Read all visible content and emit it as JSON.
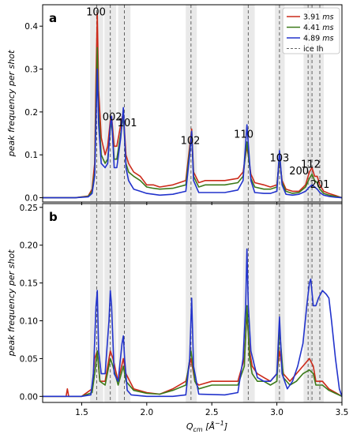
{
  "chart_data": [
    {
      "type": "line",
      "panel_label": "a",
      "ylabel": "peak frequency per shot",
      "ylim": [
        -0.01,
        0.45
      ],
      "yticks": [
        "0.0",
        "0.1",
        "0.2",
        "0.3",
        "0.4"
      ],
      "legend": {
        "placement": "top-right",
        "entries": [
          "3.91 ms",
          "4.41 ms",
          "4.89 ms",
          "ice Ih"
        ]
      },
      "peak_labels": [
        "100",
        "002",
        "101",
        "102",
        "110",
        "103",
        "200",
        "112",
        "201"
      ],
      "series": [
        {
          "name": "3.91 ms",
          "color": "#cc2a1a",
          "x": [
            1.2,
            1.45,
            1.55,
            1.58,
            1.6,
            1.61,
            1.62,
            1.63,
            1.65,
            1.68,
            1.7,
            1.72,
            1.73,
            1.75,
            1.77,
            1.8,
            1.82,
            1.84,
            1.86,
            1.9,
            1.95,
            2.0,
            2.05,
            2.1,
            2.2,
            2.3,
            2.33,
            2.345,
            2.36,
            2.4,
            2.45,
            2.5,
            2.6,
            2.7,
            2.74,
            2.77,
            2.8,
            2.83,
            2.9,
            2.95,
            3.0,
            3.02,
            3.04,
            3.07,
            3.12,
            3.17,
            3.22,
            3.25,
            3.27,
            3.29,
            3.31,
            3.33,
            3.36,
            3.4,
            3.45,
            3.5
          ],
          "y": [
            0.0,
            0.0,
            0.004,
            0.02,
            0.08,
            0.28,
            0.43,
            0.25,
            0.14,
            0.1,
            0.12,
            0.18,
            0.19,
            0.12,
            0.12,
            0.17,
            0.2,
            0.1,
            0.08,
            0.06,
            0.05,
            0.03,
            0.03,
            0.025,
            0.03,
            0.04,
            0.12,
            0.16,
            0.06,
            0.035,
            0.04,
            0.04,
            0.04,
            0.045,
            0.06,
            0.12,
            0.055,
            0.035,
            0.03,
            0.025,
            0.03,
            0.09,
            0.04,
            0.02,
            0.015,
            0.015,
            0.03,
            0.06,
            0.07,
            0.05,
            0.05,
            0.03,
            0.015,
            0.01,
            0.005,
            0.0
          ]
        },
        {
          "name": "4.41 ms",
          "color": "#3c7a1a",
          "x": [
            1.2,
            1.45,
            1.55,
            1.58,
            1.6,
            1.61,
            1.62,
            1.63,
            1.65,
            1.68,
            1.7,
            1.72,
            1.73,
            1.75,
            1.77,
            1.8,
            1.82,
            1.84,
            1.86,
            1.9,
            1.95,
            2.0,
            2.05,
            2.1,
            2.2,
            2.3,
            2.33,
            2.345,
            2.36,
            2.4,
            2.45,
            2.5,
            2.6,
            2.7,
            2.74,
            2.77,
            2.8,
            2.83,
            2.9,
            2.95,
            3.0,
            3.02,
            3.04,
            3.07,
            3.12,
            3.17,
            3.22,
            3.25,
            3.27,
            3.29,
            3.31,
            3.33,
            3.36,
            3.4,
            3.45,
            3.5
          ],
          "y": [
            0.0,
            0.0,
            0.003,
            0.015,
            0.06,
            0.22,
            0.35,
            0.2,
            0.1,
            0.08,
            0.09,
            0.16,
            0.18,
            0.09,
            0.09,
            0.15,
            0.19,
            0.08,
            0.06,
            0.05,
            0.04,
            0.025,
            0.022,
            0.02,
            0.022,
            0.03,
            0.11,
            0.155,
            0.05,
            0.025,
            0.03,
            0.03,
            0.03,
            0.035,
            0.05,
            0.13,
            0.045,
            0.025,
            0.02,
            0.02,
            0.025,
            0.095,
            0.035,
            0.015,
            0.01,
            0.012,
            0.025,
            0.045,
            0.055,
            0.04,
            0.035,
            0.02,
            0.01,
            0.006,
            0.003,
            0.0
          ]
        },
        {
          "name": "4.89 ms",
          "color": "#2233cc",
          "x": [
            1.2,
            1.45,
            1.55,
            1.58,
            1.6,
            1.61,
            1.62,
            1.63,
            1.65,
            1.68,
            1.7,
            1.72,
            1.73,
            1.75,
            1.77,
            1.8,
            1.82,
            1.84,
            1.86,
            1.9,
            1.95,
            2.0,
            2.05,
            2.1,
            2.2,
            2.3,
            2.33,
            2.345,
            2.36,
            2.4,
            2.45,
            2.5,
            2.6,
            2.7,
            2.74,
            2.77,
            2.8,
            2.83,
            2.9,
            2.95,
            3.0,
            3.02,
            3.04,
            3.07,
            3.12,
            3.17,
            3.22,
            3.25,
            3.27,
            3.29,
            3.31,
            3.33,
            3.36,
            3.4,
            3.45,
            3.5
          ],
          "y": [
            0.0,
            0.0,
            0.002,
            0.01,
            0.05,
            0.18,
            0.3,
            0.17,
            0.08,
            0.07,
            0.08,
            0.17,
            0.19,
            0.07,
            0.07,
            0.14,
            0.21,
            0.07,
            0.04,
            0.02,
            0.015,
            0.01,
            0.008,
            0.006,
            0.008,
            0.015,
            0.1,
            0.155,
            0.04,
            0.012,
            0.012,
            0.012,
            0.012,
            0.018,
            0.04,
            0.17,
            0.04,
            0.012,
            0.01,
            0.01,
            0.015,
            0.11,
            0.03,
            0.008,
            0.006,
            0.008,
            0.015,
            0.025,
            0.03,
            0.025,
            0.02,
            0.012,
            0.006,
            0.003,
            0.001,
            0.0
          ]
        }
      ]
    },
    {
      "type": "line",
      "panel_label": "b",
      "xlabel": "Q_cm [Å^-1]",
      "ylabel": "peak frequency per shot",
      "ylim": [
        -0.008,
        0.255
      ],
      "yticks": [
        "0.00",
        "0.05",
        "0.10",
        "0.15",
        "0.20",
        "0.25"
      ],
      "xlim": [
        1.2,
        3.5
      ],
      "xticks": [
        "1.5",
        "2.0",
        "2.5",
        "3.0",
        "3.5"
      ],
      "series": [
        {
          "name": "3.91 ms",
          "color": "#cc2a1a",
          "x": [
            1.2,
            1.38,
            1.39,
            1.4,
            1.5,
            1.58,
            1.6,
            1.62,
            1.64,
            1.68,
            1.72,
            1.74,
            1.78,
            1.82,
            1.84,
            1.9,
            2.0,
            2.1,
            2.2,
            2.3,
            2.34,
            2.37,
            2.4,
            2.5,
            2.6,
            2.7,
            2.75,
            2.77,
            2.79,
            2.81,
            2.85,
            2.9,
            2.95,
            3.0,
            3.02,
            3.05,
            3.1,
            3.15,
            3.2,
            3.25,
            3.28,
            3.3,
            3.35,
            3.4,
            3.45,
            3.5
          ],
          "y": [
            0.0,
            0.0,
            0.01,
            0.0,
            0.0,
            0.01,
            0.05,
            0.06,
            0.02,
            0.02,
            0.06,
            0.05,
            0.02,
            0.05,
            0.03,
            0.01,
            0.005,
            0.003,
            0.01,
            0.02,
            0.05,
            0.02,
            0.015,
            0.02,
            0.02,
            0.02,
            0.05,
            0.11,
            0.06,
            0.04,
            0.03,
            0.025,
            0.02,
            0.03,
            0.06,
            0.03,
            0.02,
            0.03,
            0.04,
            0.05,
            0.04,
            0.02,
            0.02,
            0.01,
            0.005,
            0.0
          ]
        },
        {
          "name": "4.41 ms",
          "color": "#3c7a1a",
          "x": [
            1.2,
            1.5,
            1.58,
            1.6,
            1.62,
            1.64,
            1.68,
            1.72,
            1.74,
            1.78,
            1.82,
            1.84,
            1.9,
            2.0,
            2.1,
            2.2,
            2.3,
            2.34,
            2.37,
            2.4,
            2.5,
            2.6,
            2.7,
            2.75,
            2.77,
            2.79,
            2.81,
            2.85,
            2.9,
            2.95,
            3.0,
            3.02,
            3.05,
            3.1,
            3.15,
            3.2,
            3.25,
            3.28,
            3.3,
            3.35,
            3.4,
            3.45,
            3.5
          ],
          "y": [
            0.0,
            0.0,
            0.005,
            0.03,
            0.06,
            0.02,
            0.015,
            0.05,
            0.04,
            0.015,
            0.04,
            0.02,
            0.008,
            0.004,
            0.003,
            0.008,
            0.015,
            0.06,
            0.02,
            0.01,
            0.015,
            0.015,
            0.015,
            0.04,
            0.12,
            0.05,
            0.03,
            0.02,
            0.02,
            0.015,
            0.02,
            0.09,
            0.025,
            0.015,
            0.02,
            0.03,
            0.035,
            0.03,
            0.015,
            0.015,
            0.008,
            0.004,
            0.0
          ]
        },
        {
          "name": "4.89 ms",
          "color": "#2233cc",
          "x": [
            1.2,
            1.5,
            1.57,
            1.59,
            1.61,
            1.62,
            1.63,
            1.65,
            1.68,
            1.71,
            1.72,
            1.73,
            1.75,
            1.78,
            1.81,
            1.82,
            1.83,
            1.85,
            1.88,
            2.0,
            2.2,
            2.3,
            2.33,
            2.345,
            2.36,
            2.4,
            2.6,
            2.7,
            2.74,
            2.76,
            2.77,
            2.78,
            2.8,
            2.85,
            2.9,
            2.95,
            3.0,
            3.02,
            3.04,
            3.08,
            3.12,
            3.16,
            3.2,
            3.23,
            3.25,
            3.26,
            3.28,
            3.3,
            3.32,
            3.35,
            3.38,
            3.4,
            3.42,
            3.45,
            3.48,
            3.5
          ],
          "y": [
            0.0,
            0.0,
            0.002,
            0.03,
            0.12,
            0.14,
            0.06,
            0.03,
            0.03,
            0.1,
            0.14,
            0.12,
            0.03,
            0.02,
            0.07,
            0.08,
            0.05,
            0.008,
            0.002,
            0.0,
            0.0,
            0.002,
            0.05,
            0.13,
            0.04,
            0.003,
            0.002,
            0.005,
            0.05,
            0.12,
            0.195,
            0.12,
            0.06,
            0.025,
            0.02,
            0.02,
            0.03,
            0.105,
            0.03,
            0.01,
            0.02,
            0.04,
            0.07,
            0.12,
            0.15,
            0.155,
            0.12,
            0.12,
            0.13,
            0.14,
            0.135,
            0.13,
            0.1,
            0.05,
            0.01,
            0.0
          ]
        }
      ]
    }
  ],
  "ice_peaks_x": [
    1.615,
    1.72,
    1.828,
    2.34,
    2.78,
    3.02,
    3.24,
    3.27,
    3.33
  ],
  "shaded_bands": [
    [
      1.565,
      1.665
    ],
    [
      1.675,
      1.765
    ],
    [
      1.78,
      1.875
    ],
    [
      2.3,
      2.385
    ],
    [
      2.74,
      2.83
    ],
    [
      2.985,
      3.06
    ],
    [
      3.205,
      3.265
    ],
    [
      3.255,
      3.36
    ]
  ]
}
